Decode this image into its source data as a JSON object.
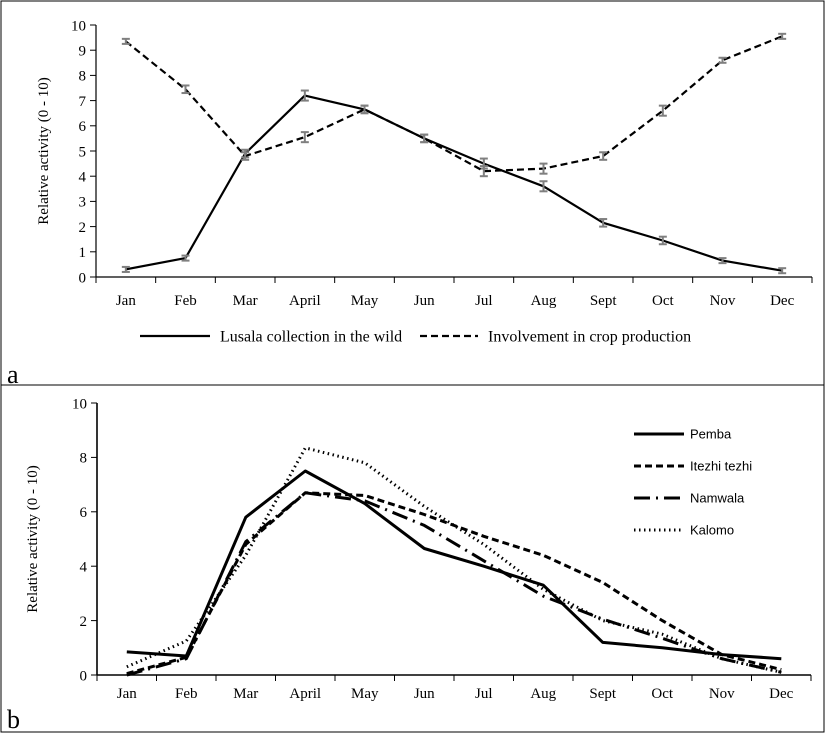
{
  "chart_data": [
    {
      "panel_label": "a",
      "type": "line",
      "categories": [
        "Jan",
        "Feb",
        "Mar",
        "April",
        "May",
        "Jun",
        "Jul",
        "Aug",
        "Sept",
        "Oct",
        "Nov",
        "Dec"
      ],
      "ylabel": "Relative activity (0 - 10)",
      "ylim": [
        0,
        10
      ],
      "yticks": [
        0,
        1,
        2,
        3,
        4,
        5,
        6,
        7,
        8,
        9,
        10
      ],
      "grid": false,
      "legend_position": "bottom",
      "error_bars": true,
      "series": [
        {
          "name": "Lusala collection in the wild",
          "style": "solid",
          "values": [
            0.3,
            0.75,
            4.9,
            7.2,
            6.65,
            5.5,
            4.5,
            3.6,
            2.15,
            1.45,
            0.65,
            0.25
          ],
          "errors": [
            0.1,
            0.1,
            0.15,
            0.2,
            0.15,
            0.15,
            0.2,
            0.2,
            0.15,
            0.15,
            0.1,
            0.1
          ]
        },
        {
          "name": "Involvement in crop production",
          "style": "dashed",
          "values": [
            9.35,
            7.45,
            4.8,
            5.55,
            6.65,
            5.5,
            4.2,
            4.3,
            4.8,
            6.6,
            8.6,
            9.55
          ],
          "errors": [
            0.1,
            0.15,
            0.15,
            0.2,
            0.15,
            0.15,
            0.2,
            0.2,
            0.15,
            0.2,
            0.1,
            0.1
          ]
        }
      ]
    },
    {
      "panel_label": "b",
      "type": "line",
      "categories": [
        "Jan",
        "Feb",
        "Mar",
        "April",
        "May",
        "Jun",
        "Jul",
        "Aug",
        "Sept",
        "Oct",
        "Nov",
        "Dec"
      ],
      "ylabel": "Relative activity (0 - 10)",
      "ylim": [
        0,
        10
      ],
      "yticks": [
        0,
        2,
        4,
        6,
        8,
        10
      ],
      "grid": false,
      "legend_position": "top-right",
      "series": [
        {
          "name": "Pemba",
          "style": "solid",
          "values": [
            0.85,
            0.7,
            5.8,
            7.5,
            6.3,
            4.65,
            4.0,
            3.3,
            1.2,
            1.0,
            0.75,
            0.6
          ]
        },
        {
          "name": "Itezhi tezhi",
          "style": "dashed",
          "values": [
            0.05,
            0.65,
            4.8,
            6.7,
            6.6,
            5.9,
            5.1,
            4.4,
            3.4,
            2.0,
            0.75,
            0.2
          ]
        },
        {
          "name": "Namwala",
          "style": "longdash",
          "values": [
            0.0,
            0.6,
            4.9,
            6.7,
            6.4,
            5.5,
            4.2,
            2.9,
            2.05,
            1.35,
            0.6,
            0.1
          ]
        },
        {
          "name": "Kalomo",
          "style": "dotted",
          "values": [
            0.3,
            1.25,
            4.4,
            8.35,
            7.8,
            6.2,
            4.8,
            3.15,
            2.0,
            1.5,
            0.6,
            0.1
          ]
        }
      ]
    }
  ]
}
